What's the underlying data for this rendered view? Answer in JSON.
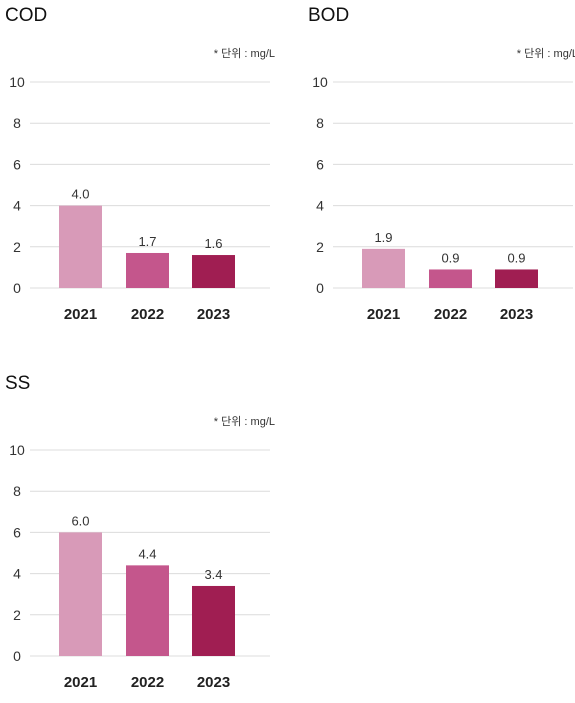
{
  "chart_data": [
    {
      "type": "bar",
      "title": "COD",
      "unit_note": "* 단위 : mg/L",
      "categories": [
        "2021",
        "2022",
        "2023"
      ],
      "values": [
        4.0,
        1.7,
        1.6
      ],
      "value_labels": [
        "4.0",
        "1.7",
        "1.6"
      ],
      "yticks": [
        0,
        2,
        4,
        6,
        8,
        10
      ],
      "ylim": [
        0,
        10
      ],
      "grid": true,
      "colors": [
        "#d89ab8",
        "#c4568c",
        "#a01e52"
      ]
    },
    {
      "type": "bar",
      "title": "BOD",
      "unit_note": "* 단위 : mg/L",
      "categories": [
        "2021",
        "2022",
        "2023"
      ],
      "values": [
        1.9,
        0.9,
        0.9
      ],
      "value_labels": [
        "1.9",
        "0.9",
        "0.9"
      ],
      "yticks": [
        0,
        2,
        4,
        6,
        8,
        10
      ],
      "ylim": [
        0,
        10
      ],
      "grid": true,
      "colors": [
        "#d89ab8",
        "#c4568c",
        "#a01e52"
      ]
    },
    {
      "type": "bar",
      "title": "SS",
      "unit_note": "* 단위 : mg/L",
      "categories": [
        "2021",
        "2022",
        "2023"
      ],
      "values": [
        6.0,
        4.4,
        3.4
      ],
      "value_labels": [
        "6.0",
        "4.4",
        "3.4"
      ],
      "yticks": [
        0,
        2,
        4,
        6,
        8,
        10
      ],
      "ylim": [
        0,
        10
      ],
      "grid": true,
      "colors": [
        "#d89ab8",
        "#c4568c",
        "#a01e52"
      ]
    }
  ]
}
